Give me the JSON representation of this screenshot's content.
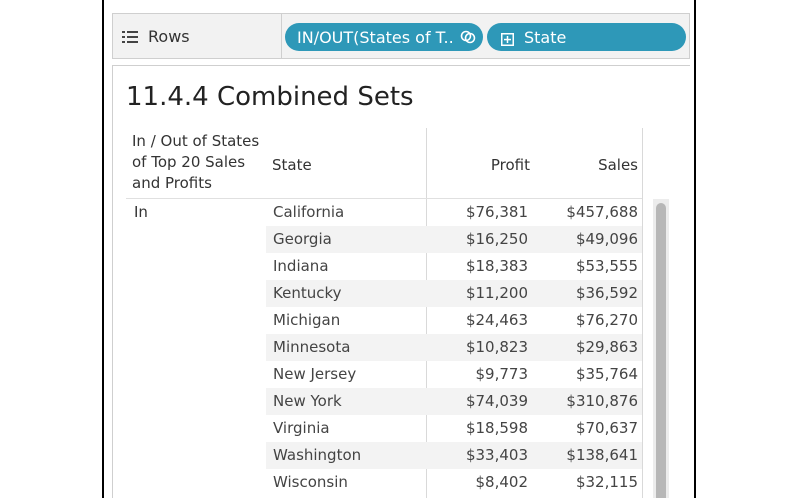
{
  "shelf": {
    "rows_label": "Rows",
    "pill_set": "IN/OUT(States of T..",
    "pill_state": "State",
    "pill_color": "#2e98b8"
  },
  "sheet": {
    "title": "11.4.4 Combined Sets",
    "columns": {
      "inout": "In / Out of States of Top 20 Sales and Profits",
      "state": "State",
      "profit": "Profit",
      "sales": "Sales"
    },
    "group_label": "In",
    "rows": [
      {
        "state": "California",
        "profit": "$76,381",
        "sales": "$457,688"
      },
      {
        "state": "Georgia",
        "profit": "$16,250",
        "sales": "$49,096"
      },
      {
        "state": "Indiana",
        "profit": "$18,383",
        "sales": "$53,555"
      },
      {
        "state": "Kentucky",
        "profit": "$11,200",
        "sales": "$36,592"
      },
      {
        "state": "Michigan",
        "profit": "$24,463",
        "sales": "$76,270"
      },
      {
        "state": "Minnesota",
        "profit": "$10,823",
        "sales": "$29,863"
      },
      {
        "state": "New Jersey",
        "profit": "$9,773",
        "sales": "$35,764"
      },
      {
        "state": "New York",
        "profit": "$74,039",
        "sales": "$310,876"
      },
      {
        "state": "Virginia",
        "profit": "$18,598",
        "sales": "$70,637"
      },
      {
        "state": "Washington",
        "profit": "$33,403",
        "sales": "$138,641"
      },
      {
        "state": "Wisconsin",
        "profit": "$8,402",
        "sales": "$32,115"
      }
    ]
  }
}
